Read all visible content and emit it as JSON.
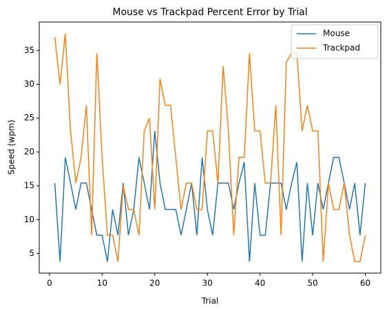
{
  "chart_data": {
    "type": "line",
    "title": "Mouse vs Trackpad Percent Error by Trial",
    "x_label": "Trial",
    "y_label": "Speed (wpm)",
    "x": [
      1,
      2,
      3,
      4,
      5,
      6,
      7,
      8,
      9,
      10,
      11,
      12,
      13,
      14,
      15,
      16,
      17,
      18,
      19,
      20,
      21,
      22,
      23,
      24,
      25,
      26,
      27,
      28,
      29,
      30,
      31,
      32,
      33,
      34,
      35,
      36,
      37,
      38,
      39,
      40,
      41,
      42,
      43,
      44,
      45,
      46,
      47,
      48,
      49,
      50,
      51,
      52,
      53,
      54,
      55,
      56,
      57,
      58,
      59,
      60
    ],
    "series": [
      {
        "name": "Mouse",
        "color": "#1f77b4",
        "values": [
          15.4,
          3.8,
          19.2,
          15.4,
          11.5,
          15.4,
          15.4,
          11.5,
          7.7,
          7.7,
          3.8,
          11.5,
          7.7,
          15.4,
          7.7,
          11.5,
          19.2,
          15.4,
          11.5,
          23.1,
          15.4,
          11.5,
          11.5,
          11.5,
          7.7,
          11.5,
          15.4,
          7.7,
          19.2,
          11.5,
          7.7,
          15.4,
          15.4,
          15.4,
          11.5,
          15.4,
          18.5,
          3.8,
          15.4,
          7.7,
          7.7,
          15.4,
          15.4,
          15.4,
          11.5,
          15.4,
          18.5,
          3.8,
          15.4,
          7.7,
          15.4,
          11.5,
          15.4,
          19.2,
          19.2,
          15.4,
          11.5,
          15.4,
          7.7,
          15.4
        ]
      },
      {
        "name": "Trackpad",
        "color": "#ff7f0e",
        "values": [
          37.0,
          30.0,
          37.5,
          23.1,
          15.4,
          19.2,
          26.9,
          7.7,
          34.6,
          19.2,
          7.7,
          7.7,
          3.8,
          15.0,
          11.5,
          11.5,
          7.7,
          23.1,
          25.0,
          11.5,
          30.8,
          26.9,
          26.9,
          19.2,
          11.5,
          15.4,
          15.4,
          11.5,
          11.5,
          23.1,
          23.1,
          15.4,
          32.7,
          23.1,
          7.7,
          19.2,
          19.2,
          34.6,
          23.1,
          23.1,
          15.4,
          15.4,
          26.9,
          7.7,
          33.3,
          34.6,
          34.6,
          23.1,
          26.9,
          23.1,
          23.1,
          3.8,
          15.4,
          11.5,
          11.5,
          15.4,
          7.7,
          3.8,
          3.8,
          7.7
        ]
      }
    ],
    "xlim": [
      -1.95,
      62.95
    ],
    "xticks": [
      0,
      10,
      20,
      30,
      40,
      50,
      60
    ],
    "ylim": [
      2.1,
      39.2
    ],
    "yticks": [
      5,
      10,
      15,
      20,
      25,
      30,
      35
    ],
    "legend": "upper right"
  }
}
